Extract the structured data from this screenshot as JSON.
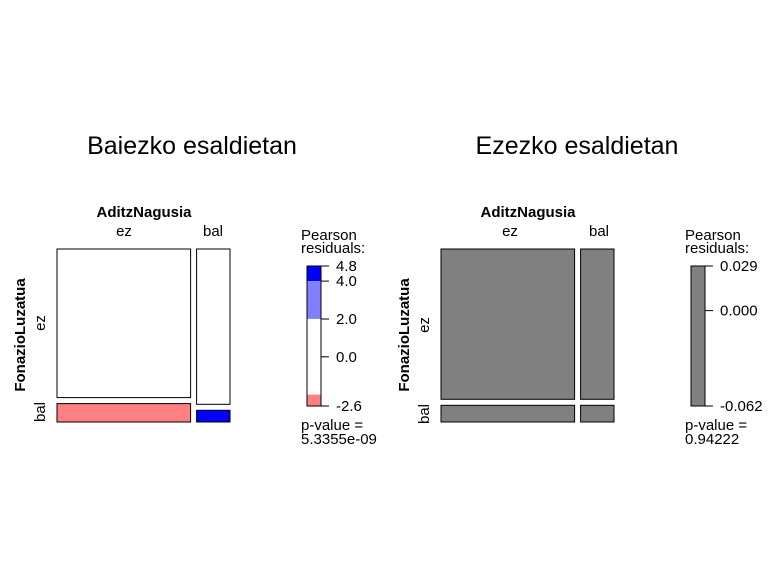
{
  "chart_data": [
    {
      "type": "mosaic",
      "title": "Baiezko esaldietan",
      "column_variable": "AditzNagusia",
      "row_variable": "FonazioLuzatua",
      "column_levels": [
        "ez",
        "bal"
      ],
      "row_levels": [
        "ez",
        "bal"
      ],
      "column_proportions": [
        0.8,
        0.2
      ],
      "row_proportions_within_column": [
        [
          0.89,
          0.11
        ],
        [
          0.93,
          0.07
        ]
      ],
      "cell_residual_class": [
        [
          "neutral",
          "neutral"
        ],
        [
          "neg_moderate",
          "pos_strong"
        ]
      ],
      "legend": {
        "title_line1": "Pearson",
        "title_line2": "residuals:",
        "min": -2.6,
        "max": 4.8,
        "ticks": [
          {
            "value": 4.8,
            "label": "4.8"
          },
          {
            "value": 4.0,
            "label": "4.0"
          },
          {
            "value": 2.0,
            "label": "2.0"
          },
          {
            "value": 0.0,
            "label": "0.0"
          },
          {
            "value": -2.6,
            "label": "-2.6"
          }
        ],
        "bands": [
          {
            "from": 4.0,
            "to": 4.8,
            "color": "#0000ff"
          },
          {
            "from": 2.0,
            "to": 4.0,
            "color": "#8080ff"
          },
          {
            "from": -2.0,
            "to": 2.0,
            "color": "#ffffff"
          },
          {
            "from": -2.6,
            "to": -2.0,
            "color": "#ff8080"
          }
        ],
        "pvalue_label": "p-value =",
        "pvalue": "5.3355e-09"
      }
    },
    {
      "type": "mosaic",
      "title": "Ezezko esaldietan",
      "column_variable": "AditzNagusia",
      "row_variable": "FonazioLuzatua",
      "column_levels": [
        "ez",
        "bal"
      ],
      "row_levels": [
        "ez",
        "bal"
      ],
      "column_proportions": [
        0.8,
        0.2
      ],
      "row_proportions_within_column": [
        [
          0.9,
          0.1
        ],
        [
          0.9,
          0.1
        ]
      ],
      "cell_residual_class": [
        [
          "neutral_grey",
          "neutral_grey"
        ],
        [
          "neutral_grey",
          "neutral_grey"
        ]
      ],
      "legend": {
        "title_line1": "Pearson",
        "title_line2": "residuals:",
        "min": -0.062,
        "max": 0.029,
        "ticks": [
          {
            "value": 0.029,
            "label": "0.029"
          },
          {
            "value": 0.0,
            "label": "0.000"
          },
          {
            "value": -0.062,
            "label": "-0.062"
          }
        ],
        "bands": [
          {
            "from": -0.062,
            "to": 0.029,
            "color": "#808080"
          }
        ],
        "pvalue_label": "p-value =",
        "pvalue": "0.94222"
      }
    }
  ],
  "colors": {
    "neutral": "#ffffff",
    "neutral_grey": "#808080",
    "neg_moderate": "#ff8080",
    "pos_strong": "#0000ff",
    "border": "#000000"
  }
}
